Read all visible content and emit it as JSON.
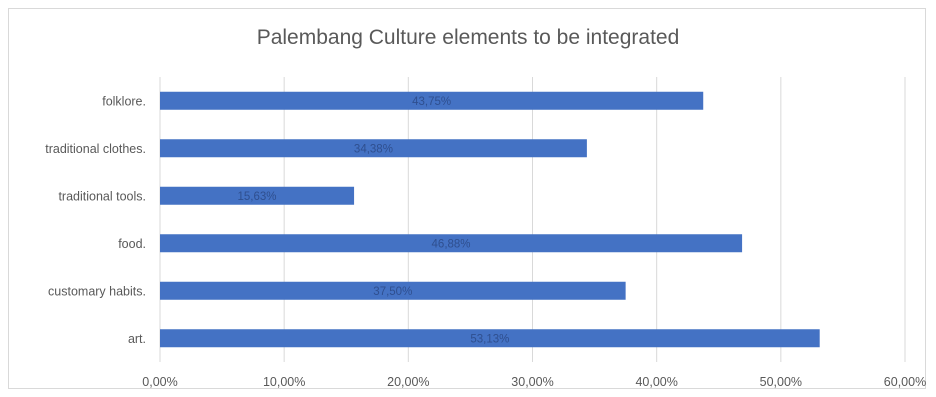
{
  "chart_data": {
    "type": "bar",
    "orientation": "horizontal",
    "title": "Palembang Culture elements to be integrated",
    "categories": [
      "folklore.",
      "traditional clothes.",
      "traditional tools.",
      "food.",
      "customary habits.",
      "art."
    ],
    "values": [
      43.75,
      34.38,
      15.63,
      46.88,
      37.5,
      53.13
    ],
    "data_labels": [
      "43,75%",
      "34,38%",
      "15,63%",
      "46,88%",
      "37,50%",
      "53,13%"
    ],
    "xlim": [
      0,
      60
    ],
    "x_ticks": [
      0,
      10,
      20,
      30,
      40,
      50,
      60
    ],
    "x_tick_labels": [
      "0,00%",
      "10,00%",
      "20,00%",
      "30,00%",
      "40,00%",
      "50,00%",
      "60,00%"
    ],
    "grid": "vertical",
    "legend": "none",
    "bar_color": "#4472c4",
    "grid_color": "#d9d9d9"
  }
}
